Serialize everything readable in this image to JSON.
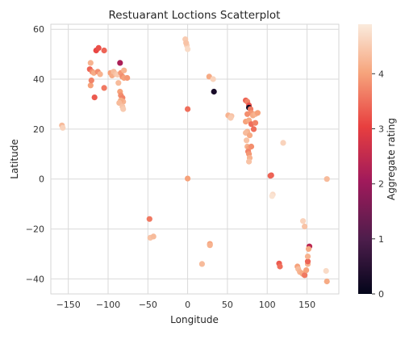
{
  "chart_data": {
    "type": "scatter",
    "title": "Restuarant Loctions Scatterplot",
    "xlabel": "Longitude",
    "ylabel": "Latitude",
    "xlim": [
      -172,
      190
    ],
    "ylim": [
      -46,
      62
    ],
    "xticks": [
      -150,
      -100,
      -50,
      0,
      50,
      100,
      150
    ],
    "yticks": [
      -40,
      -20,
      0,
      20,
      40,
      60
    ],
    "x_tick_labels": [
      "−150",
      "−100",
      "−50",
      "0",
      "50",
      "100",
      "150"
    ],
    "y_tick_labels": [
      "−40",
      "−20",
      "0",
      "20",
      "40",
      "60"
    ],
    "grid": true,
    "colorbar": {
      "label": "Aggregate rating",
      "range": [
        0,
        4.9
      ],
      "ticks": [
        0,
        1,
        2,
        3,
        4
      ],
      "tick_labels": [
        "0",
        "1",
        "2",
        "3",
        "4"
      ],
      "colors": [
        "#03051a",
        "#4c1d4b",
        "#a11a5b",
        "#e83f3f",
        "#f6a47c",
        "#faebdd"
      ]
    },
    "points": [
      {
        "x": -158,
        "y": 21.5,
        "c": 4.3
      },
      {
        "x": -157,
        "y": 20.5,
        "c": 4.6
      },
      {
        "x": -122,
        "y": 46.5,
        "c": 4.2
      },
      {
        "x": -123,
        "y": 44.0,
        "c": 3.4
      },
      {
        "x": -120,
        "y": 43.0,
        "c": 3.8
      },
      {
        "x": -118,
        "y": 42.5,
        "c": 4.1
      },
      {
        "x": -122,
        "y": 37.5,
        "c": 4.0
      },
      {
        "x": -121,
        "y": 39.5,
        "c": 3.7
      },
      {
        "x": -117,
        "y": 32.7,
        "c": 3.3
      },
      {
        "x": -115,
        "y": 51.5,
        "c": 3.1
      },
      {
        "x": -112,
        "y": 52.5,
        "c": 3.2
      },
      {
        "x": -105,
        "y": 51.5,
        "c": 3.4
      },
      {
        "x": -113,
        "y": 43.0,
        "c": 3.8
      },
      {
        "x": -110,
        "y": 42.0,
        "c": 4.2
      },
      {
        "x": -105,
        "y": 36.5,
        "c": 3.6
      },
      {
        "x": -97,
        "y": 42.5,
        "c": 4.0
      },
      {
        "x": -95,
        "y": 41.5,
        "c": 4.1
      },
      {
        "x": -93,
        "y": 43.0,
        "c": 4.3
      },
      {
        "x": -90,
        "y": 42.0,
        "c": 4.4
      },
      {
        "x": -88,
        "y": 41.8,
        "c": 4.5
      },
      {
        "x": -85,
        "y": 46.5,
        "c": 2.2
      },
      {
        "x": -84,
        "y": 42.5,
        "c": 3.9
      },
      {
        "x": -82,
        "y": 41.0,
        "c": 3.8
      },
      {
        "x": -80,
        "y": 40.5,
        "c": 4.0
      },
      {
        "x": -80,
        "y": 43.5,
        "c": 4.2
      },
      {
        "x": -76,
        "y": 40.5,
        "c": 3.9
      },
      {
        "x": -87,
        "y": 38.5,
        "c": 4.3
      },
      {
        "x": -85,
        "y": 35.0,
        "c": 4.0
      },
      {
        "x": -84,
        "y": 33.5,
        "c": 3.8
      },
      {
        "x": -82,
        "y": 32.5,
        "c": 3.7
      },
      {
        "x": -81,
        "y": 31.0,
        "c": 4.2
      },
      {
        "x": -84,
        "y": 31.5,
        "c": 4.1
      },
      {
        "x": -86,
        "y": 30.5,
        "c": 4.3
      },
      {
        "x": -82,
        "y": 29.0,
        "c": 4.4
      },
      {
        "x": -81,
        "y": 28.0,
        "c": 4.5
      },
      {
        "x": -48,
        "y": -16.0,
        "c": 3.6
      },
      {
        "x": -47,
        "y": -23.5,
        "c": 4.4
      },
      {
        "x": -43,
        "y": -23.0,
        "c": 4.3
      },
      {
        "x": -3,
        "y": 56.0,
        "c": 4.5
      },
      {
        "x": -1,
        "y": 53.5,
        "c": 4.6
      },
      {
        "x": 0,
        "y": 52.0,
        "c": 4.7
      },
      {
        "x": -2,
        "y": 54.5,
        "c": 4.4
      },
      {
        "x": 0,
        "y": 28.0,
        "c": 3.5
      },
      {
        "x": 0,
        "y": 0.2,
        "c": 4.0
      },
      {
        "x": 27,
        "y": 41.0,
        "c": 4.1
      },
      {
        "x": 32,
        "y": 40.0,
        "c": 4.6
      },
      {
        "x": 33,
        "y": 35.0,
        "c": 0.3
      },
      {
        "x": 28,
        "y": -26.0,
        "c": 4.0
      },
      {
        "x": 28,
        "y": -26.5,
        "c": 4.2
      },
      {
        "x": 18,
        "y": -34.0,
        "c": 4.3
      },
      {
        "x": 51,
        "y": 25.5,
        "c": 4.2
      },
      {
        "x": 55,
        "y": 25.2,
        "c": 4.4
      },
      {
        "x": 54,
        "y": 24.5,
        "c": 4.5
      },
      {
        "x": 73,
        "y": 31.5,
        "c": 3.4
      },
      {
        "x": 75,
        "y": 31.0,
        "c": 3.7
      },
      {
        "x": 77,
        "y": 29.5,
        "c": 3.2
      },
      {
        "x": 77,
        "y": 28.6,
        "c": 0.2
      },
      {
        "x": 79,
        "y": 28.0,
        "c": 3.6
      },
      {
        "x": 80,
        "y": 26.5,
        "c": 3.9
      },
      {
        "x": 82,
        "y": 25.5,
        "c": 4.1
      },
      {
        "x": 85,
        "y": 26.0,
        "c": 4.2
      },
      {
        "x": 88,
        "y": 26.5,
        "c": 4.0
      },
      {
        "x": 75,
        "y": 26.0,
        "c": 3.8
      },
      {
        "x": 73,
        "y": 23.0,
        "c": 4.0
      },
      {
        "x": 77,
        "y": 23.5,
        "c": 4.1
      },
      {
        "x": 80,
        "y": 22.0,
        "c": 3.5
      },
      {
        "x": 85,
        "y": 22.5,
        "c": 3.7
      },
      {
        "x": 83,
        "y": 20.0,
        "c": 3.5
      },
      {
        "x": 75,
        "y": 19.0,
        "c": 4.2
      },
      {
        "x": 73,
        "y": 18.5,
        "c": 4.3
      },
      {
        "x": 78,
        "y": 17.5,
        "c": 4.1
      },
      {
        "x": 74,
        "y": 15.5,
        "c": 4.4
      },
      {
        "x": 75,
        "y": 13.0,
        "c": 4.2
      },
      {
        "x": 77,
        "y": 12.5,
        "c": 4.0
      },
      {
        "x": 80,
        "y": 13.0,
        "c": 3.8
      },
      {
        "x": 76,
        "y": 11.0,
        "c": 3.7
      },
      {
        "x": 77,
        "y": 10.0,
        "c": 3.9
      },
      {
        "x": 78,
        "y": 8.5,
        "c": 4.2
      },
      {
        "x": 77,
        "y": 7.0,
        "c": 4.4
      },
      {
        "x": 120,
        "y": 14.5,
        "c": 4.6
      },
      {
        "x": 105,
        "y": 1.5,
        "c": 3.3
      },
      {
        "x": 104,
        "y": 1.3,
        "c": 3.4
      },
      {
        "x": 107,
        "y": -6.2,
        "c": 4.7
      },
      {
        "x": 106,
        "y": -6.8,
        "c": 4.8
      },
      {
        "x": 115,
        "y": -33.8,
        "c": 3.3
      },
      {
        "x": 116,
        "y": -35.0,
        "c": 3.5
      },
      {
        "x": 138,
        "y": -35.0,
        "c": 4.0
      },
      {
        "x": 139,
        "y": -36.0,
        "c": 4.3
      },
      {
        "x": 141,
        "y": -37.2,
        "c": 4.2
      },
      {
        "x": 145,
        "y": -38.0,
        "c": 3.9
      },
      {
        "x": 144,
        "y": -37.8,
        "c": 4.1
      },
      {
        "x": 147,
        "y": -38.5,
        "c": 3.6
      },
      {
        "x": 149,
        "y": -36.5,
        "c": 4.0
      },
      {
        "x": 151,
        "y": -34.0,
        "c": 4.2
      },
      {
        "x": 151,
        "y": -33.0,
        "c": 3.4
      },
      {
        "x": 153,
        "y": -27.0,
        "c": 2.4
      },
      {
        "x": 152,
        "y": -28.0,
        "c": 4.1
      },
      {
        "x": 151,
        "y": -31.0,
        "c": 4.2
      },
      {
        "x": 147,
        "y": -19.0,
        "c": 4.4
      },
      {
        "x": 145,
        "y": -16.8,
        "c": 4.6
      },
      {
        "x": 174,
        "y": -36.8,
        "c": 4.7
      },
      {
        "x": 175,
        "y": -41.0,
        "c": 4.1
      },
      {
        "x": 175,
        "y": 0.0,
        "c": 4.3
      }
    ]
  }
}
